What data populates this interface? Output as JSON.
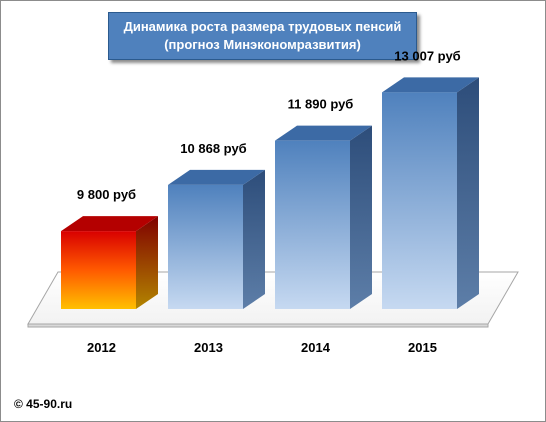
{
  "chart_data": {
    "type": "bar",
    "title": "Динамика роста размера трудовых пенсий",
    "subtitle": "(прогноз Минэкономразвития)",
    "categories": [
      "2012",
      "2013",
      "2014",
      "2015"
    ],
    "values": [
      9800,
      10868,
      11890,
      13007
    ],
    "data_labels": [
      "9 800 руб",
      "10 868 руб",
      "11 890 руб",
      "13 007 руб"
    ],
    "ylim": [
      8000,
      13500
    ],
    "grid": false,
    "legend": "none",
    "style": "3d-columns",
    "colors": {
      "highlight_top": "#c00000",
      "highlight_bottom": "#ffc000",
      "bar_top": "#4f81bd",
      "bar_bottom": "#c6d9f1",
      "bar_side": "#2d4d7a",
      "title_bg": "#4f81bd"
    }
  },
  "copyright": "© 45-90.ru"
}
